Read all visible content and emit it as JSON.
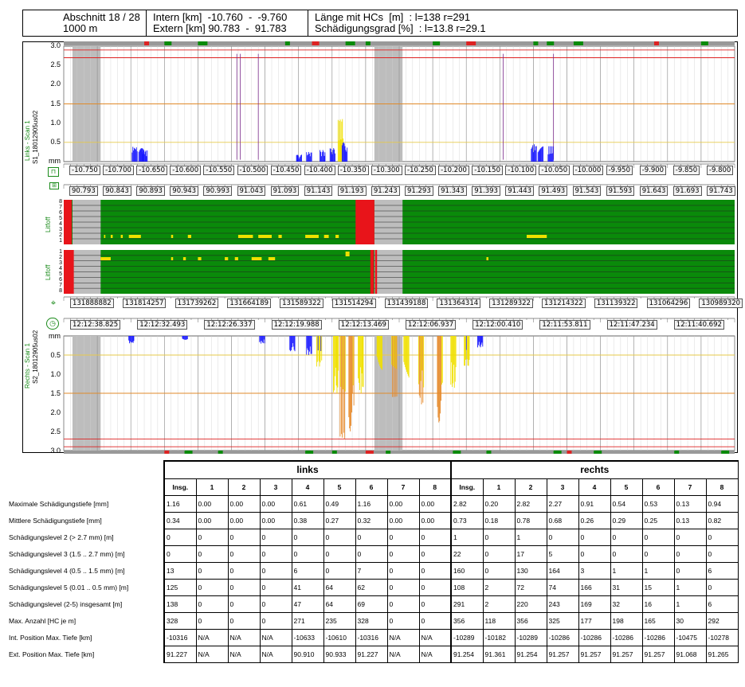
{
  "header": {
    "abschnitt": "Abschnitt 18 / 28",
    "length": "1000 m",
    "intern": "Intern [km]  -10.760  -  -9.760",
    "extern": "Extern [km] 90.783  -  91.783",
    "laenge": "Länge mit HCs  [m]  : l=138 r=291",
    "grad": "Schädigungsgrad [%]  : l=13.8 r=29.1"
  },
  "side_labels": {
    "top_scan": "Links - Scan 1",
    "top_file": "S1_18012905us02",
    "top_litho": "Litfoff",
    "bot_litho": "Litfoff",
    "bot_scan": "Rechts - Scan 1",
    "bot_file": "S2_18012905us02"
  },
  "icons": {
    "top": "signal-icon",
    "top2": "level-icon",
    "bot": "gps-icon",
    "bot2": "clock-icon"
  },
  "axis": {
    "top_ticks": [
      "3.0",
      "2.5",
      "2.0",
      "1.5",
      "1.0",
      "0.5",
      "mm"
    ],
    "bot_ticks": [
      "mm",
      "0.5",
      "1.0",
      "1.5",
      "2.0",
      "2.5",
      "3.0"
    ],
    "lane_ticks_top": [
      "8",
      "7",
      "6",
      "5",
      "4",
      "3",
      "2",
      "1"
    ],
    "lane_ticks_bot": [
      "1",
      "2",
      "3",
      "4",
      "5",
      "6",
      "7",
      "8"
    ]
  },
  "rulers": {
    "intern": [
      "-10.750",
      "-10.700",
      "-10.650",
      "-10.600",
      "-10.550",
      "-10.500",
      "-10.450",
      "-10.400",
      "-10.350",
      "-10.300",
      "-10.250",
      "-10.200",
      "-10.150",
      "-10.100",
      "-10.050",
      "-10.000",
      "-9.950",
      "-9.900",
      "-9.850",
      "-9.800"
    ],
    "extern": [
      "90.793",
      "90.843",
      "90.893",
      "90.943",
      "90.993",
      "91.043",
      "91.093",
      "91.143",
      "91.193",
      "91.243",
      "91.293",
      "91.343",
      "91.393",
      "91.443",
      "91.493",
      "91.543",
      "91.593",
      "91.643",
      "91.693",
      "91.743"
    ],
    "gps": [
      "131888882",
      "131814257",
      "131739262",
      "131664189",
      "131589322",
      "131514294",
      "131439188",
      "131364314",
      "131289322",
      "131214322",
      "131139322",
      "131064296",
      "130989320"
    ],
    "time": [
      "12:12:38.825",
      "12:12:32.493",
      "12:12:26.337",
      "12:12:19.988",
      "12:12:13.469",
      "12:12:06.937",
      "12:12:00.410",
      "12:11:53.811",
      "12:11:47.234",
      "12:11:40.692"
    ]
  },
  "chart_data": {
    "type": "bar",
    "x_range_km": [
      -10.76,
      -9.76
    ],
    "ylim_mm": [
      0,
      3.0
    ],
    "reference_lines_mm": [
      0.5,
      1.5,
      2.7
    ],
    "series": [
      {
        "name": "links",
        "profile": [
          [
            -10.655,
            0.4
          ],
          [
            -10.645,
            0.35
          ],
          [
            -10.64,
            0.3
          ],
          [
            -10.41,
            0.18
          ],
          [
            -10.395,
            0.25
          ],
          [
            -10.375,
            0.3
          ],
          [
            -10.36,
            0.35
          ],
          [
            -10.348,
            1.16
          ],
          [
            -10.342,
            0.5
          ],
          [
            -10.06,
            0.45
          ],
          [
            -10.05,
            0.4
          ],
          [
            -10.035,
            0.4
          ]
        ]
      },
      {
        "name": "rechts",
        "profile": [
          [
            -10.66,
            0.2
          ],
          [
            -10.58,
            0.1
          ],
          [
            -10.465,
            0.2
          ],
          [
            -10.42,
            0.4
          ],
          [
            -10.395,
            0.5
          ],
          [
            -10.38,
            0.8
          ],
          [
            -10.355,
            1.5
          ],
          [
            -10.345,
            2.82
          ],
          [
            -10.332,
            2.5
          ],
          [
            -10.318,
            1.5
          ],
          [
            -10.29,
            0.9
          ],
          [
            -10.268,
            1.6
          ],
          [
            -10.25,
            1.2
          ],
          [
            -10.228,
            1.8
          ],
          [
            -10.2,
            2.27
          ],
          [
            -10.18,
            1.4
          ],
          [
            -10.16,
            0.8
          ],
          [
            -10.14,
            0.3
          ]
        ]
      }
    ]
  },
  "table": {
    "group_left": "links",
    "group_right": "rechts",
    "col_headers": [
      "Insg.",
      "1",
      "2",
      "3",
      "4",
      "5",
      "6",
      "7",
      "8",
      "Insg.",
      "1",
      "2",
      "3",
      "4",
      "5",
      "6",
      "7",
      "8"
    ],
    "rows": [
      {
        "label": "Maximale Schädigungstiefe [mm]",
        "cells": [
          "1.16",
          "0.00",
          "0.00",
          "0.00",
          "0.61",
          "0.49",
          "1.16",
          "0.00",
          "0.00",
          "2.82",
          "0.20",
          "2.82",
          "2.27",
          "0.91",
          "0.54",
          "0.53",
          "0.13",
          "0.94"
        ]
      },
      {
        "label": "Mittlere Schädigungstiefe [mm]",
        "cells": [
          "0.34",
          "0.00",
          "0.00",
          "0.00",
          "0.38",
          "0.27",
          "0.32",
          "0.00",
          "0.00",
          "0.73",
          "0.18",
          "0.78",
          "0.68",
          "0.26",
          "0.29",
          "0.25",
          "0.13",
          "0.82"
        ]
      },
      {
        "label": "Schädigungslevel 2 (> 2.7 mm) [m]",
        "cells": [
          "0",
          "0",
          "0",
          "0",
          "0",
          "0",
          "0",
          "0",
          "0",
          "1",
          "0",
          "1",
          "0",
          "0",
          "0",
          "0",
          "0",
          "0"
        ]
      },
      {
        "label": "Schädigungslevel 3 (1.5 .. 2.7 mm) [m]",
        "cells": [
          "0",
          "0",
          "0",
          "0",
          "0",
          "0",
          "0",
          "0",
          "0",
          "22",
          "0",
          "17",
          "5",
          "0",
          "0",
          "0",
          "0",
          "0"
        ]
      },
      {
        "label": "Schädigungslevel 4 (0.5 .. 1.5 mm) [m]",
        "cells": [
          "13",
          "0",
          "0",
          "0",
          "6",
          "0",
          "7",
          "0",
          "0",
          "160",
          "0",
          "130",
          "164",
          "3",
          "1",
          "1",
          "0",
          "6"
        ]
      },
      {
        "label": "Schädigungslevel 5 (0.01 .. 0.5 mm) [m]",
        "cells": [
          "125",
          "0",
          "0",
          "0",
          "41",
          "64",
          "62",
          "0",
          "0",
          "108",
          "2",
          "72",
          "74",
          "166",
          "31",
          "15",
          "1",
          "0"
        ]
      },
      {
        "label": "Schädigungslevel (2-5) insgesamt [m]",
        "cells": [
          "138",
          "0",
          "0",
          "0",
          "47",
          "64",
          "69",
          "0",
          "0",
          "291",
          "2",
          "220",
          "243",
          "169",
          "32",
          "16",
          "1",
          "6"
        ]
      },
      {
        "label": "Max. Anzahl [HC je m]",
        "cells": [
          "328",
          "0",
          "0",
          "0",
          "271",
          "235",
          "328",
          "0",
          "0",
          "356",
          "118",
          "356",
          "325",
          "177",
          "198",
          "165",
          "30",
          "292"
        ]
      },
      {
        "label": "Int. Position Max. Tiefe [km]",
        "cells": [
          "-10316",
          "N/A",
          "N/A",
          "N/A",
          "-10633",
          "-10610",
          "-10316",
          "N/A",
          "N/A",
          "-10289",
          "-10182",
          "-10289",
          "-10286",
          "-10286",
          "-10286",
          "-10286",
          "-10475",
          "-10278"
        ]
      },
      {
        "label": "Ext. Position Max. Tiefe [km]",
        "cells": [
          "91.227",
          "N/A",
          "N/A",
          "N/A",
          "90.910",
          "90.933",
          "91.227",
          "N/A",
          "N/A",
          "91.254",
          "91.361",
          "91.254",
          "91.257",
          "91.257",
          "91.257",
          "91.257",
          "91.068",
          "91.265"
        ]
      }
    ]
  }
}
